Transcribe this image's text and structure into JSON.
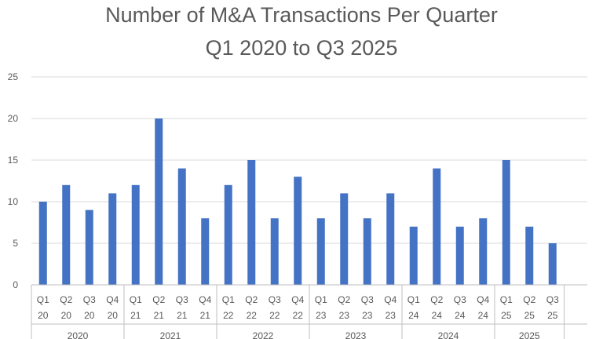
{
  "chart_data": {
    "type": "bar",
    "title": "Number of M&A Transactions Per Quarter",
    "subtitle": "Q1 2020 to Q3 2025",
    "xlabel": "",
    "ylabel": "",
    "ylim": [
      0,
      25
    ],
    "yticks": [
      0,
      5,
      10,
      15,
      20,
      25
    ],
    "grid": true,
    "legend": "none",
    "bar_color": "#4472c4",
    "categories": [
      {
        "quarter": "Q1",
        "yr": "20"
      },
      {
        "quarter": "Q2",
        "yr": "20"
      },
      {
        "quarter": "Q3",
        "yr": "20"
      },
      {
        "quarter": "Q4",
        "yr": "20"
      },
      {
        "quarter": "Q1",
        "yr": "21"
      },
      {
        "quarter": "Q2",
        "yr": "21"
      },
      {
        "quarter": "Q3",
        "yr": "21"
      },
      {
        "quarter": "Q4",
        "yr": "21"
      },
      {
        "quarter": "Q1",
        "yr": "22"
      },
      {
        "quarter": "Q2",
        "yr": "22"
      },
      {
        "quarter": "Q3",
        "yr": "22"
      },
      {
        "quarter": "Q4",
        "yr": "22"
      },
      {
        "quarter": "Q1",
        "yr": "23"
      },
      {
        "quarter": "Q2",
        "yr": "23"
      },
      {
        "quarter": "Q3",
        "yr": "23"
      },
      {
        "quarter": "Q4",
        "yr": "23"
      },
      {
        "quarter": "Q1",
        "yr": "24"
      },
      {
        "quarter": "Q2",
        "yr": "24"
      },
      {
        "quarter": "Q3",
        "yr": "24"
      },
      {
        "quarter": "Q4",
        "yr": "24"
      },
      {
        "quarter": "Q1",
        "yr": "25"
      },
      {
        "quarter": "Q2",
        "yr": "25"
      },
      {
        "quarter": "Q3",
        "yr": "25"
      }
    ],
    "groups": [
      {
        "label": "2020",
        "quarters": 4
      },
      {
        "label": "2021",
        "quarters": 4
      },
      {
        "label": "2022",
        "quarters": 4
      },
      {
        "label": "2023",
        "quarters": 4
      },
      {
        "label": "2024",
        "quarters": 4
      },
      {
        "label": "2025",
        "quarters": 3
      }
    ],
    "values": [
      10,
      12,
      9,
      11,
      12,
      20,
      14,
      8,
      12,
      15,
      8,
      13,
      8,
      11,
      8,
      11,
      7,
      14,
      7,
      8,
      15,
      7,
      5
    ]
  }
}
